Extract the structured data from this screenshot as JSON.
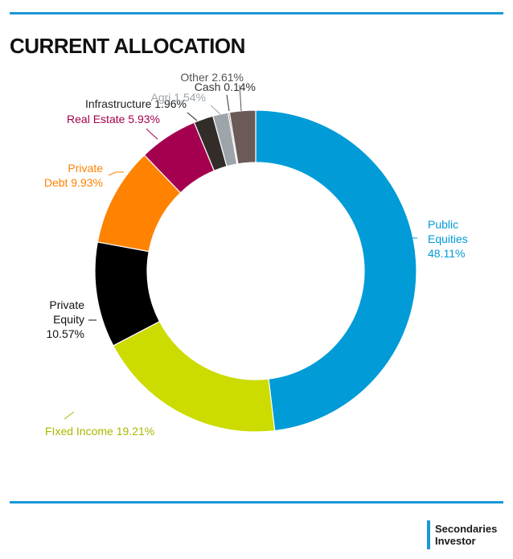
{
  "header": {
    "title": "CURRENT ALLOCATION"
  },
  "brand": {
    "line1": "Secondaries",
    "line2": "Investor"
  },
  "chart_data": {
    "type": "pie",
    "donut": true,
    "title": "CURRENT ALLOCATION",
    "slices": [
      {
        "label": "Public Equities",
        "value": 48.11,
        "text": "48.11%",
        "color": "#019bd8",
        "label_color": "#019bd8"
      },
      {
        "label": "Fixed Income",
        "value": 19.21,
        "text": "19.21%",
        "color": "#ccdb00",
        "label_color": "#a8b800"
      },
      {
        "label": "Private Equity",
        "value": 10.57,
        "text": "10.57%",
        "color": "#000000",
        "label_color": "#111111"
      },
      {
        "label": "Private Debt",
        "value": 9.93,
        "text": "9.93%",
        "color": "#ff8200",
        "label_color": "#ff8200"
      },
      {
        "label": "Real Estate",
        "value": 5.93,
        "text": "5.93%",
        "color": "#a5004f",
        "label_color": "#a5004f"
      },
      {
        "label": "Infrastructure",
        "value": 1.96,
        "text": "1.96%",
        "color": "#332d2a",
        "label_color": "#222222"
      },
      {
        "label": "Agri",
        "value": 1.54,
        "text": "1.54%",
        "color": "#9ea5aa",
        "label_color": "#9ea5aa"
      },
      {
        "label": "Cash",
        "value": 0.14,
        "text": "0.14%",
        "color": "#5e5050",
        "label_color": "#333333"
      },
      {
        "label": "Other",
        "value": 2.61,
        "text": "2.61%",
        "color": "#6b5a58",
        "label_color": "#555555"
      }
    ],
    "labels": [
      {
        "lines": [
          "Public",
          "Equities",
          "48.11%"
        ]
      },
      {
        "lines": [
          "FIxed Income 19.21%"
        ]
      },
      {
        "lines": [
          "Private",
          "Equity",
          "10.57%"
        ]
      },
      {
        "lines": [
          "Private",
          "Debt 9.93%"
        ]
      },
      {
        "lines": [
          "Real Estate 5.93%"
        ]
      },
      {
        "lines": [
          "Infrastructure 1.96%"
        ]
      },
      {
        "lines": [
          "Agri 1.54%"
        ]
      },
      {
        "lines": [
          "Cash 0.14%"
        ]
      },
      {
        "lines": [
          "Other 2.61%"
        ]
      }
    ]
  }
}
